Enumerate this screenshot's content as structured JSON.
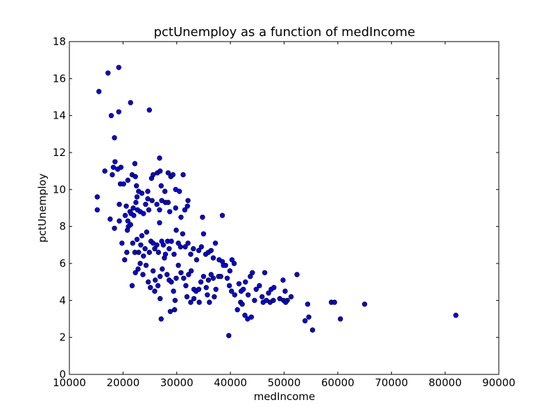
{
  "chart_data": {
    "type": "scatter",
    "title": "pctUnemploy as a function of medIncome",
    "xlabel": "medIncome",
    "ylabel": "pctUnemploy",
    "xlim": [
      10000,
      90000
    ],
    "ylim": [
      0,
      18
    ],
    "xticks": [
      "10000",
      "20000",
      "30000",
      "40000",
      "50000",
      "60000",
      "70000",
      "80000",
      "90000"
    ],
    "yticks": [
      "0",
      "2",
      "4",
      "6",
      "8",
      "10",
      "12",
      "14",
      "16",
      "18"
    ],
    "marker_color": "#0000ff",
    "points": [
      [
        15500,
        15.3
      ],
      [
        17200,
        16.3
      ],
      [
        19200,
        16.6
      ],
      [
        17800,
        14.0
      ],
      [
        19200,
        14.2
      ],
      [
        21400,
        14.7
      ],
      [
        24900,
        14.3
      ],
      [
        18400,
        12.8
      ],
      [
        15200,
        9.6
      ],
      [
        15200,
        8.9
      ],
      [
        16600,
        11.0
      ],
      [
        18000,
        10.8
      ],
      [
        18200,
        11.2
      ],
      [
        18500,
        11.5
      ],
      [
        19000,
        11.1
      ],
      [
        19600,
        11.2
      ],
      [
        19500,
        10.3
      ],
      [
        20100,
        10.3
      ],
      [
        20900,
        10.5
      ],
      [
        21700,
        10.8
      ],
      [
        22200,
        11.4
      ],
      [
        22300,
        10.7
      ],
      [
        22500,
        10.2
      ],
      [
        22900,
        9.9
      ],
      [
        23500,
        9.8
      ],
      [
        24600,
        9.9
      ],
      [
        25300,
        10.6
      ],
      [
        25600,
        10.8
      ],
      [
        26400,
        10.9
      ],
      [
        26900,
        11.0
      ],
      [
        26800,
        11.7
      ],
      [
        28400,
        10.9
      ],
      [
        28900,
        10.7
      ],
      [
        29300,
        10.8
      ],
      [
        31200,
        10.8
      ],
      [
        29800,
        10.0
      ],
      [
        30500,
        9.9
      ],
      [
        27100,
        10.2
      ],
      [
        27800,
        9.9
      ],
      [
        17600,
        8.4
      ],
      [
        18400,
        7.9
      ],
      [
        19300,
        8.3
      ],
      [
        19300,
        9.2
      ],
      [
        20600,
        9.1
      ],
      [
        20400,
        8.6
      ],
      [
        20900,
        8.3
      ],
      [
        21300,
        8.8
      ],
      [
        21900,
        9.0
      ],
      [
        22400,
        9.3
      ],
      [
        22600,
        9.6
      ],
      [
        21500,
        8.7
      ],
      [
        22000,
        8.6
      ],
      [
        22700,
        8.9
      ],
      [
        23200,
        8.8
      ],
      [
        23800,
        8.7
      ],
      [
        24200,
        9.2
      ],
      [
        24600,
        9.5
      ],
      [
        24800,
        8.9
      ],
      [
        25400,
        9.4
      ],
      [
        26300,
        9.2
      ],
      [
        26800,
        8.9
      ],
      [
        27200,
        9.4
      ],
      [
        27900,
        9.3
      ],
      [
        28400,
        9.3
      ],
      [
        28700,
        8.8
      ],
      [
        29800,
        9.0
      ],
      [
        30800,
        8.5
      ],
      [
        31500,
        8.9
      ],
      [
        32000,
        9.1
      ],
      [
        32100,
        9.4
      ],
      [
        34800,
        8.5
      ],
      [
        38500,
        8.6
      ],
      [
        19800,
        7.1
      ],
      [
        20300,
        6.2
      ],
      [
        20700,
        6.6
      ],
      [
        20800,
        7.8
      ],
      [
        21000,
        8.0
      ],
      [
        21400,
        8.1
      ],
      [
        21800,
        7.1
      ],
      [
        22200,
        6.6
      ],
      [
        22600,
        7.3
      ],
      [
        22900,
        6.6
      ],
      [
        23300,
        7.0
      ],
      [
        23500,
        7.5
      ],
      [
        23800,
        6.4
      ],
      [
        24100,
        6.8
      ],
      [
        24400,
        7.7
      ],
      [
        24900,
        6.6
      ],
      [
        25200,
        7.2
      ],
      [
        25600,
        7.1
      ],
      [
        25900,
        6.8
      ],
      [
        26300,
        7.0
      ],
      [
        26600,
        6.6
      ],
      [
        26800,
        8.2
      ],
      [
        27200,
        7.2
      ],
      [
        27500,
        7.0
      ],
      [
        27900,
        6.5
      ],
      [
        28300,
        7.2
      ],
      [
        28600,
        6.8
      ],
      [
        29000,
        7.2
      ],
      [
        29500,
        6.5
      ],
      [
        29900,
        7.8
      ],
      [
        30300,
        7.1
      ],
      [
        30700,
        6.9
      ],
      [
        31100,
        7.6
      ],
      [
        31600,
        6.9
      ],
      [
        32100,
        7.1
      ],
      [
        32600,
        6.5
      ],
      [
        33100,
        6.8
      ],
      [
        33700,
        6.2
      ],
      [
        34100,
        6.7
      ],
      [
        34600,
        6.9
      ],
      [
        35000,
        7.6
      ],
      [
        35400,
        6.5
      ],
      [
        35900,
        6.6
      ],
      [
        36400,
        6.7
      ],
      [
        36800,
        6.3
      ],
      [
        37200,
        7.1
      ],
      [
        37900,
        6.2
      ],
      [
        38500,
        6.1
      ],
      [
        39100,
        5.9
      ],
      [
        39900,
        5.6
      ],
      [
        40300,
        6.2
      ],
      [
        40700,
        6.0
      ],
      [
        21700,
        4.8
      ],
      [
        22300,
        5.5
      ],
      [
        22800,
        5.7
      ],
      [
        23200,
        6.0
      ],
      [
        23700,
        5.4
      ],
      [
        24300,
        5.9
      ],
      [
        24700,
        5.0
      ],
      [
        25100,
        4.7
      ],
      [
        25600,
        5.6
      ],
      [
        26000,
        5.1
      ],
      [
        26500,
        4.8
      ],
      [
        26900,
        5.3
      ],
      [
        27300,
        5.7
      ],
      [
        27700,
        6.3
      ],
      [
        28200,
        5.4
      ],
      [
        28600,
        5.1
      ],
      [
        29000,
        5.0
      ],
      [
        29400,
        4.5
      ],
      [
        29900,
        5.2
      ],
      [
        30300,
        5.9
      ],
      [
        30800,
        5.5
      ],
      [
        31300,
        5.2
      ],
      [
        31700,
        4.8
      ],
      [
        32200,
        5.4
      ],
      [
        32700,
        5.6
      ],
      [
        33200,
        4.6
      ],
      [
        33600,
        4.5
      ],
      [
        34100,
        4.6
      ],
      [
        34500,
        5.0
      ],
      [
        35000,
        5.3
      ],
      [
        35500,
        4.7
      ],
      [
        35900,
        5.1
      ],
      [
        36400,
        5.4
      ],
      [
        36800,
        5.2
      ],
      [
        37300,
        4.6
      ],
      [
        37800,
        5.3
      ],
      [
        38200,
        5.3
      ],
      [
        38700,
        5.9
      ],
      [
        39400,
        5.2
      ],
      [
        39800,
        4.8
      ],
      [
        40200,
        4.5
      ],
      [
        40800,
        4.3
      ],
      [
        41600,
        4.9
      ],
      [
        42000,
        4.5
      ],
      [
        42400,
        4.6
      ],
      [
        42800,
        5.0
      ],
      [
        43300,
        4.3
      ],
      [
        43700,
        5.3
      ],
      [
        44100,
        5.5
      ],
      [
        44800,
        4.6
      ],
      [
        45400,
        4.8
      ],
      [
        45900,
        4.2
      ],
      [
        46400,
        5.5
      ],
      [
        47100,
        4.4
      ],
      [
        47600,
        4.6
      ],
      [
        48100,
        4.7
      ],
      [
        49200,
        4.1
      ],
      [
        49800,
        5.1
      ],
      [
        50200,
        4.5
      ],
      [
        50600,
        4.0
      ],
      [
        51300,
        4.2
      ],
      [
        52400,
        5.4
      ],
      [
        25900,
        4.5
      ],
      [
        26900,
        4.1
      ],
      [
        27100,
        3.0
      ],
      [
        28800,
        3.4
      ],
      [
        29600,
        3.5
      ],
      [
        29700,
        4.0
      ],
      [
        31900,
        4.2
      ],
      [
        32600,
        3.9
      ],
      [
        33200,
        4.1
      ],
      [
        34200,
        3.9
      ],
      [
        35700,
        4.3
      ],
      [
        36100,
        3.9
      ],
      [
        37000,
        4.2
      ],
      [
        39700,
        2.1
      ],
      [
        41300,
        3.5
      ],
      [
        41900,
        3.9
      ],
      [
        42200,
        3.8
      ],
      [
        42700,
        3.2
      ],
      [
        43200,
        3.0
      ],
      [
        43900,
        3.1
      ],
      [
        44500,
        4.0
      ],
      [
        46100,
        3.9
      ],
      [
        46700,
        4.0
      ],
      [
        47400,
        3.9
      ],
      [
        48000,
        4.0
      ],
      [
        49900,
        4.0
      ],
      [
        50300,
        3.9
      ],
      [
        53900,
        2.9
      ],
      [
        54400,
        3.8
      ],
      [
        54600,
        3.1
      ],
      [
        55300,
        2.4
      ],
      [
        58800,
        3.9
      ],
      [
        59400,
        3.9
      ],
      [
        60500,
        3.0
      ],
      [
        65000,
        3.8
      ],
      [
        82000,
        3.2
      ]
    ]
  }
}
